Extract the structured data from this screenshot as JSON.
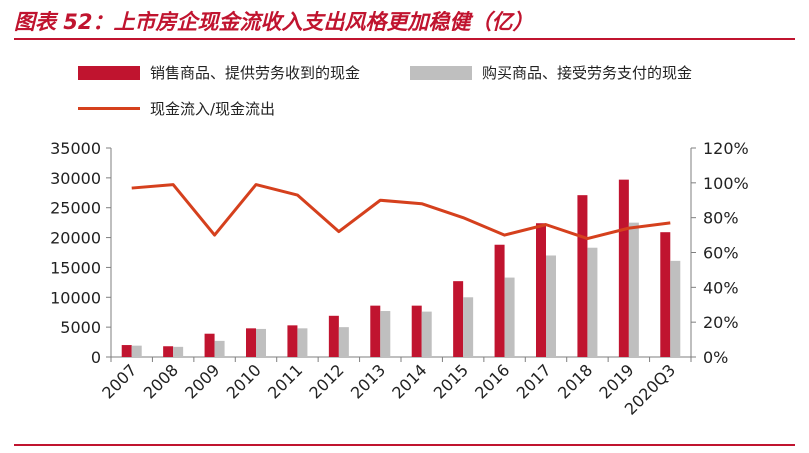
{
  "page": {
    "title": "图表 52：上市房企现金流收入支出风格更加稳健（亿）"
  },
  "chart_data": {
    "type": "bar",
    "categories": [
      "2007",
      "2008",
      "2009",
      "2010",
      "2011",
      "2012",
      "2013",
      "2014",
      "2015",
      "2016",
      "2017",
      "2018",
      "2019",
      "2020Q3"
    ],
    "series": [
      {
        "name": "销售商品、提供劳务收到的现金",
        "type": "bar",
        "axis": "left",
        "color": "#c0142f",
        "values": [
          2000,
          1800,
          3900,
          4800,
          5300,
          6900,
          8600,
          8600,
          12700,
          18800,
          22400,
          27100,
          29700,
          20900
        ]
      },
      {
        "name": "购买商品、接受劳务支付的现金",
        "type": "bar",
        "axis": "left",
        "color": "#bfbfbf",
        "values": [
          1900,
          1700,
          2700,
          4700,
          4800,
          5000,
          7700,
          7600,
          10000,
          13300,
          17000,
          18300,
          22500,
          16100
        ]
      },
      {
        "name": "现金流入/现金流出",
        "type": "line",
        "axis": "right",
        "color": "#d5401d",
        "values": [
          0.97,
          0.99,
          0.7,
          0.99,
          0.93,
          0.72,
          0.9,
          0.88,
          0.8,
          0.7,
          0.76,
          0.68,
          0.74,
          0.77
        ]
      }
    ],
    "ylim_left": [
      0,
      35000
    ],
    "ylim_right": [
      0,
      1.2
    ],
    "left_ticks": [
      "0",
      "5000",
      "10000",
      "15000",
      "20000",
      "25000",
      "30000",
      "35000"
    ],
    "right_ticks": [
      "0%",
      "20%",
      "40%",
      "60%",
      "80%",
      "100%",
      "120%"
    ],
    "legend_position": "top-left",
    "grid": false
  }
}
